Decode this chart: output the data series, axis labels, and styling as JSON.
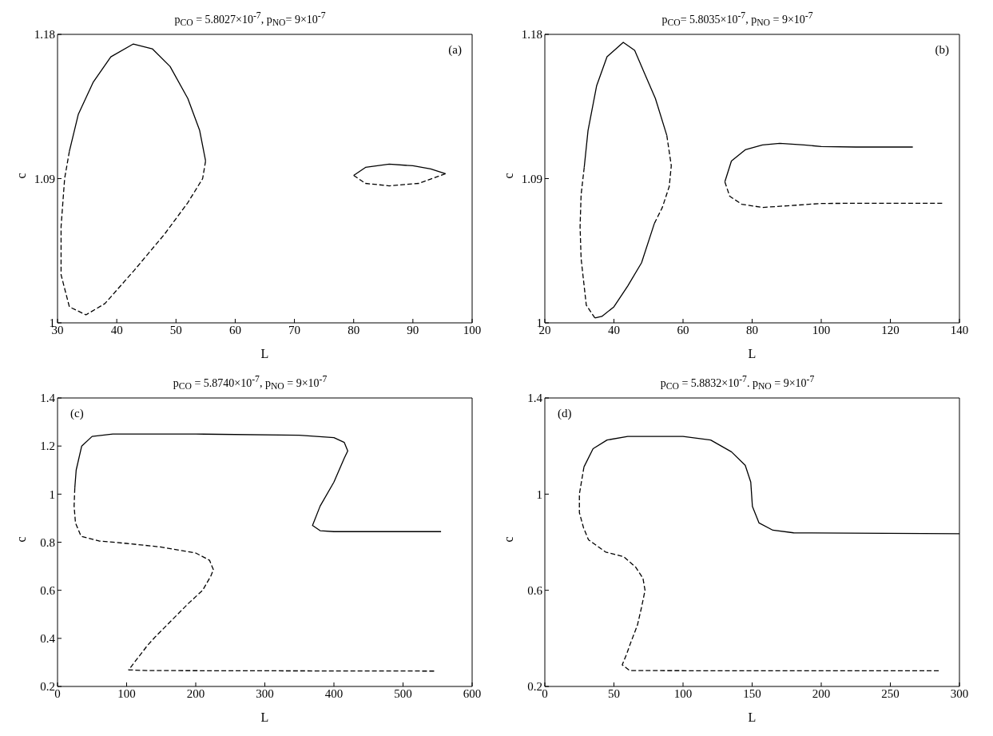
{
  "chart_data": [
    {
      "type": "line",
      "title": "p$_{CO}$ = 5.8027×10$^{-7}$, p$_{NO}$= 9×10$^{-7}$",
      "xlabel": "L",
      "ylabel": "c",
      "annotations": [
        "(a)"
      ],
      "xlim": [
        30,
        100
      ],
      "xticks": [
        30,
        40,
        50,
        60,
        70,
        80,
        90,
        100
      ],
      "ylim": [
        1,
        1.18
      ],
      "yticks": [
        1,
        1.09,
        1.18
      ],
      "series": [
        {
          "color": "#000000",
          "line_style": "solid",
          "x": [
            32,
            33.5,
            36,
            39,
            42.8,
            46,
            49,
            52,
            54,
            55
          ],
          "values": [
            1.107,
            1.13,
            1.15,
            1.166,
            1.174,
            1.171,
            1.16,
            1.14,
            1.12,
            1.101
          ]
        },
        {
          "color": "#000000",
          "line_style": "dashed",
          "x": [
            55,
            54.5,
            52,
            48,
            43,
            38,
            34.8,
            32,
            30.6,
            30.6,
            31.2,
            32
          ],
          "values": [
            1.101,
            1.09,
            1.075,
            1.055,
            1.033,
            1.012,
            1.005,
            1.01,
            1.03,
            1.06,
            1.09,
            1.107
          ]
        },
        {
          "color": "#000000",
          "line_style": "solid",
          "x": [
            80,
            82,
            86,
            90,
            93,
            95.5
          ],
          "values": [
            1.092,
            1.097,
            1.099,
            1.098,
            1.096,
            1.093
          ]
        },
        {
          "color": "#000000",
          "line_style": "dashed",
          "x": [
            95.5,
            91,
            86,
            82,
            80
          ],
          "values": [
            1.093,
            1.087,
            1.0855,
            1.087,
            1.092
          ]
        }
      ]
    },
    {
      "type": "line",
      "title": "p$_{CO}$= 5.8035×10$^{-7}$, p$_{NO}$ = 9×10$^{-7}$",
      "xlabel": "L",
      "ylabel": "c",
      "annotations": [
        "(b)"
      ],
      "xlim": [
        20,
        140
      ],
      "xticks": [
        20,
        40,
        60,
        80,
        100,
        120,
        140
      ],
      "ylim": [
        1,
        1.18
      ],
      "yticks": [
        1,
        1.09,
        1.18
      ],
      "series": [
        {
          "color": "#000000",
          "line_style": "solid",
          "x": [
            31.4,
            32.5,
            35,
            38,
            42.7,
            46,
            49,
            52,
            55.3
          ],
          "values": [
            1.097,
            1.12,
            1.148,
            1.166,
            1.175,
            1.17,
            1.155,
            1.14,
            1.117
          ]
        },
        {
          "color": "#000000",
          "line_style": "dashed",
          "x": [
            55.3,
            56.6,
            56,
            54,
            51.7
          ],
          "values": [
            1.117,
            1.098,
            1.085,
            1.072,
            1.062
          ]
        },
        {
          "color": "#000000",
          "line_style": "solid",
          "x": [
            51.7,
            48,
            44,
            40,
            36.5,
            34.5
          ],
          "values": [
            1.062,
            1.0375,
            1.023,
            1.01,
            1.004,
            1.003
          ]
        },
        {
          "color": "#000000",
          "line_style": "dashed",
          "x": [
            34.5,
            32,
            30.5,
            30.2,
            30.5,
            31.4
          ],
          "values": [
            1.003,
            1.011,
            1.04,
            1.06,
            1.08,
            1.097
          ]
        },
        {
          "color": "#000000",
          "line_style": "solid",
          "x": [
            72.1,
            74,
            78,
            83,
            88,
            95,
            100,
            110,
            126.5
          ],
          "values": [
            1.088,
            1.101,
            1.108,
            1.111,
            1.112,
            1.111,
            1.11,
            1.1097,
            1.1097
          ]
        },
        {
          "color": "#000000",
          "line_style": "dashed",
          "x": [
            72.1,
            73.5,
            77,
            83,
            90,
            100,
            110,
            135
          ],
          "values": [
            1.088,
            1.079,
            1.074,
            1.072,
            1.073,
            1.0745,
            1.0746,
            1.0746
          ]
        }
      ]
    },
    {
      "type": "line",
      "title": "p$_{CO}$ = 5.8740×10$^{-7}$, p$_{NO}$ = 9×10$^{-7}$",
      "xlabel": "L",
      "ylabel": "c",
      "annotations": [
        "(c)"
      ],
      "xlim": [
        0,
        600
      ],
      "xticks": [
        0,
        100,
        200,
        300,
        400,
        500,
        600
      ],
      "ylim": [
        0.2,
        1.4
      ],
      "yticks": [
        0.2,
        0.4,
        0.6,
        0.8,
        1,
        1.2,
        1.4
      ],
      "series": [
        {
          "color": "#000000",
          "line_style": "solid",
          "x": [
            25,
            27,
            35,
            50,
            80,
            200,
            350,
            400,
            415,
            420,
            415,
            400,
            380,
            369,
            380,
            400,
            555
          ],
          "values": [
            1.025,
            1.1,
            1.2,
            1.24,
            1.25,
            1.25,
            1.245,
            1.235,
            1.215,
            1.18,
            1.15,
            1.05,
            0.95,
            0.87,
            0.848,
            0.844,
            0.844
          ]
        },
        {
          "color": "#000000",
          "line_style": "dashed",
          "x": [
            25,
            24,
            26,
            34,
            60,
            100,
            150,
            200,
            220,
            225.5,
            222,
            210,
            190,
            160,
            142,
            130,
            103,
            130,
            300,
            545
          ],
          "values": [
            1.025,
            0.95,
            0.88,
            0.825,
            0.805,
            0.795,
            0.78,
            0.755,
            0.725,
            0.686,
            0.66,
            0.6,
            0.547,
            0.46,
            0.408,
            0.37,
            0.269,
            0.266,
            0.265,
            0.264
          ]
        }
      ]
    },
    {
      "type": "line",
      "title": "p$_{CO}$ = 5.8832×10$^{-7}$. p$_{NO}$ = 9×10$^{-7}$",
      "xlabel": "L",
      "ylabel": "c",
      "annotations": [
        "(d)"
      ],
      "xlim": [
        0,
        300
      ],
      "xticks": [
        0,
        50,
        100,
        150,
        200,
        250,
        300
      ],
      "ylim": [
        0.2,
        1.4
      ],
      "yticks": [
        0.2,
        0.6,
        1,
        1.4
      ],
      "series": [
        {
          "color": "#000000",
          "line_style": "solid",
          "x": [
            28.3,
            34.9,
            45,
            60,
            100,
            120,
            135,
            145,
            149,
            150.2,
            155,
            165,
            180,
            300
          ],
          "values": [
            1.113,
            1.189,
            1.225,
            1.24,
            1.24,
            1.225,
            1.176,
            1.12,
            1.05,
            0.949,
            0.88,
            0.85,
            0.839,
            0.835
          ]
        },
        {
          "color": "#000000",
          "line_style": "dashed",
          "x": [
            28.3,
            25,
            25,
            28,
            31.6,
            44,
            57,
            65.8,
            71,
            72.5,
            70,
            67,
            62,
            59.2,
            56,
            61.4,
            150,
            285
          ],
          "values": [
            1.113,
            1.0,
            0.923,
            0.86,
            0.81,
            0.759,
            0.74,
            0.696,
            0.65,
            0.6,
            0.53,
            0.455,
            0.38,
            0.335,
            0.29,
            0.266,
            0.265,
            0.265
          ]
        }
      ]
    }
  ]
}
